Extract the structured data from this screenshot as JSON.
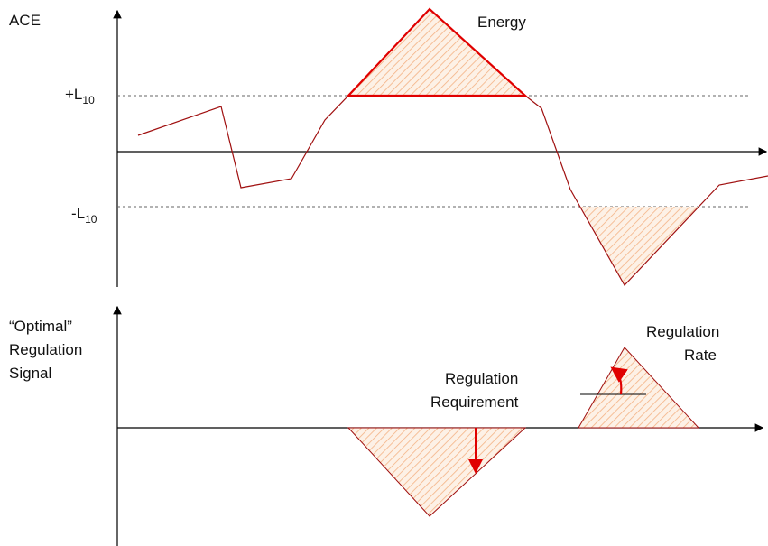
{
  "top_panel": {
    "axis_label": "ACE",
    "upper_limit": {
      "main": "+L",
      "sub": "10"
    },
    "lower_limit": {
      "main": "-L",
      "sub": "10"
    },
    "energy_label": "Energy"
  },
  "bottom_panel": {
    "axis_label": [
      "“Optimal”",
      "Regulation",
      "Signal"
    ],
    "requirement_label": [
      "Regulation",
      "Requirement"
    ],
    "rate_label": [
      "Regulation",
      "Rate"
    ]
  }
}
